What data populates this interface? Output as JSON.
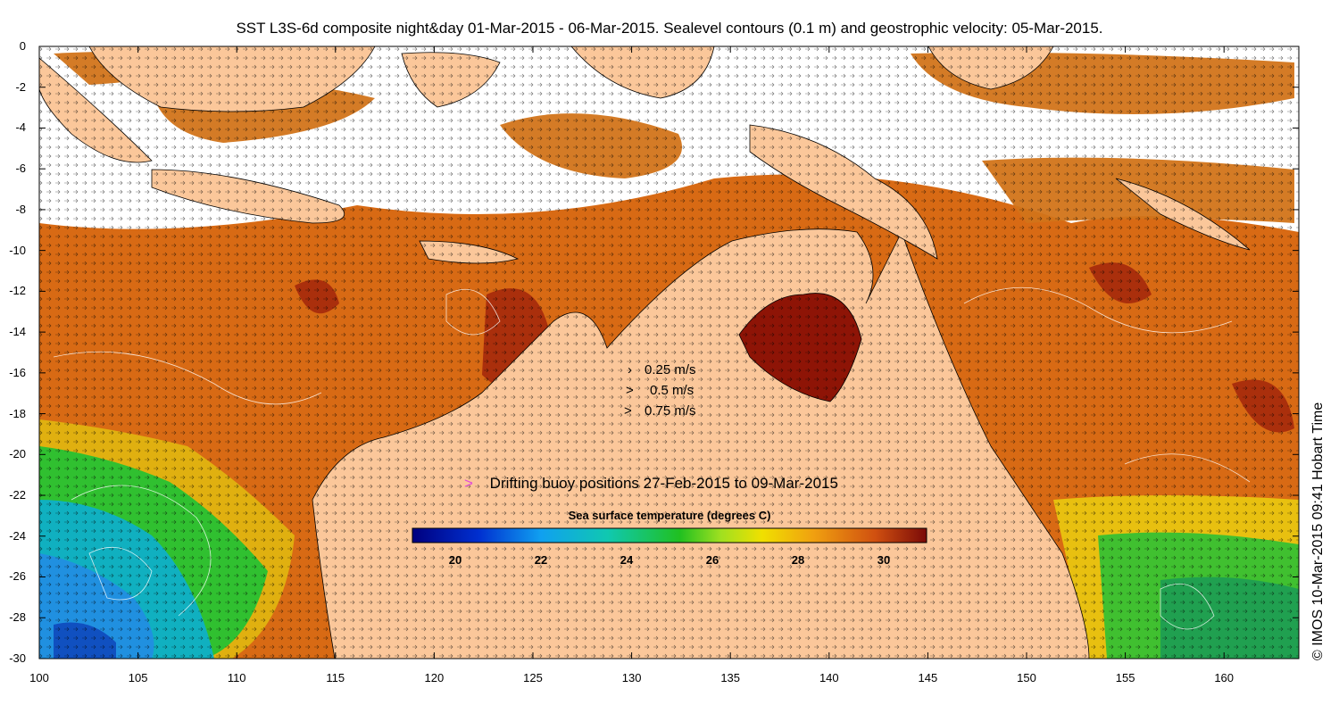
{
  "title": "SST L3S-6d composite night&day 01-Mar-2015 - 06-Mar-2015. Sealevel contours (0.1 m) and geostrophic velocity: 05-Mar-2015.",
  "credit": "© IMOS 10-Mar-2015 09:41 Hobart Time",
  "axes": {
    "x_ticks": [
      "100",
      "105",
      "110",
      "115",
      "120",
      "125",
      "130",
      "135",
      "140",
      "145",
      "150",
      "155",
      "160"
    ],
    "y_ticks": [
      "0",
      "-2",
      "-4",
      "-6",
      "-8",
      "-10",
      "-12",
      "-14",
      "-16",
      "-18",
      "-20",
      "-22",
      "-24",
      "-26",
      "-28",
      "-30"
    ]
  },
  "velocity_legend": [
    {
      "glyph": "›",
      "label": "0.25 m/s"
    },
    {
      "glyph": ">",
      "label": "0.5 m/s"
    },
    {
      "glyph": ">",
      "label": "0.75 m/s"
    }
  ],
  "buoy_legend": {
    "glyph": ">",
    "label": "Drifting buoy positions 27-Feb-2015 to 09-Mar-2015",
    "color": "#e14ad8"
  },
  "colorbar": {
    "title": "Sea surface temperature (degrees C)",
    "ticks": [
      "20",
      "22",
      "24",
      "26",
      "28",
      "30"
    ]
  },
  "colors": {
    "land": "#fbc79a",
    "warm": "#d06010",
    "hot": "#9b1a06",
    "mid": "#e7a010",
    "green": "#30c030",
    "cool": "#20a0e0",
    "cold": "#1040a0"
  }
}
